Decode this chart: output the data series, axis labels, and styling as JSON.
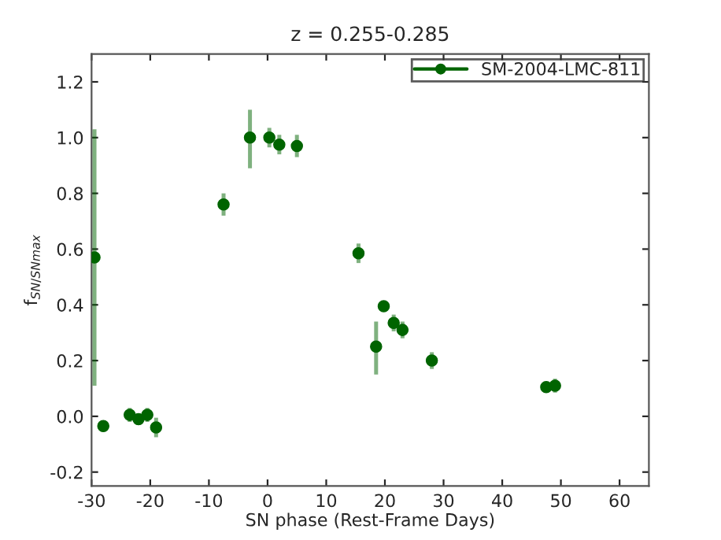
{
  "chart_data": {
    "type": "scatter",
    "title": "z = 0.255-0.285",
    "xlabel": "SN phase (Rest-Frame Days)",
    "ylabel": "f$_{SN/SNmax}$",
    "x": [
      -29.5,
      -28,
      -23.5,
      -22,
      -20.5,
      -19,
      -7.5,
      -3,
      0.3,
      2,
      5,
      15.5,
      18.5,
      19.8,
      21.5,
      23,
      28,
      47.5,
      49
    ],
    "series": [
      {
        "name": "SM-2004-LMC-811",
        "color": "#006400",
        "values": [
          0.57,
          -0.035,
          0.005,
          -0.01,
          0.005,
          -0.04,
          0.76,
          1.0,
          1.0,
          0.975,
          0.97,
          0.585,
          0.25,
          0.395,
          0.335,
          0.31,
          0.2,
          0.105,
          0.11
        ],
        "errors": [
          [
            0.11,
            1.03
          ],
          0.02,
          0.025,
          0.02,
          0.025,
          0.035,
          0.04,
          [
            0.89,
            1.1
          ],
          0.035,
          0.035,
          0.04,
          0.035,
          [
            0.15,
            0.34
          ],
          0.02,
          0.03,
          0.03,
          0.03,
          0.02,
          0.025
        ]
      }
    ],
    "xlim": [
      -30,
      65
    ],
    "ylim": [
      -0.25,
      1.3
    ],
    "xticks": [
      -30,
      -20,
      -10,
      0,
      10,
      20,
      30,
      40,
      50,
      60
    ],
    "yticks": [
      -0.2,
      {
        "value": 0,
        "label": "0.0"
      },
      0.2,
      0.4,
      0.6,
      0.8,
      {
        "value": 1,
        "label": "1.0"
      },
      1.2
    ],
    "marker": "circle",
    "grid": false,
    "legend": "top right"
  }
}
